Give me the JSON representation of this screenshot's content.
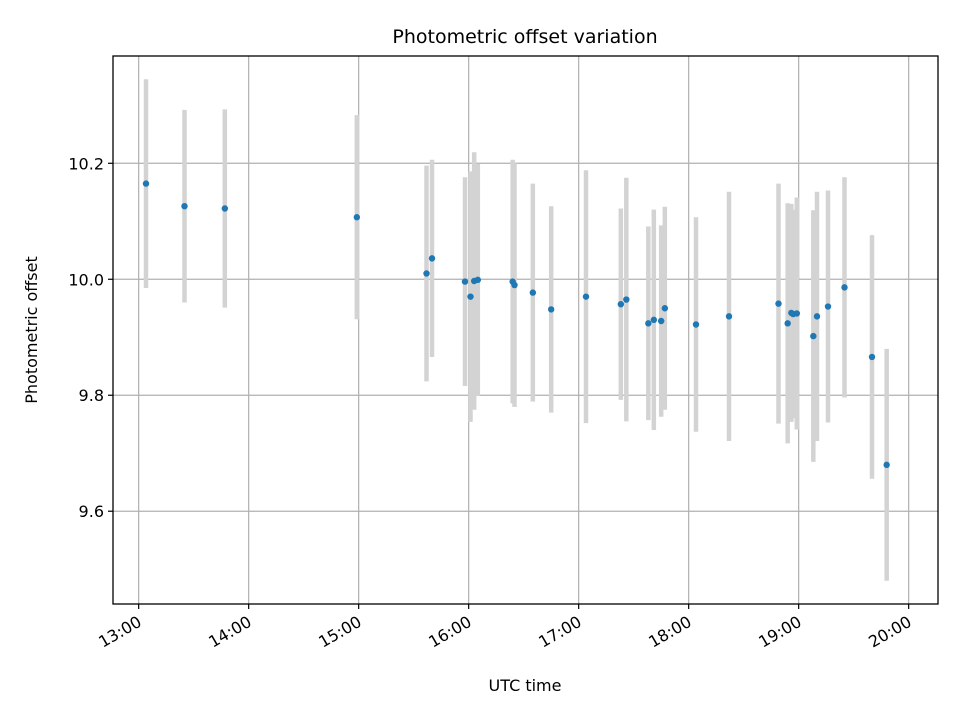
{
  "chart_data": {
    "type": "scatter",
    "title": "Photometric offset variation",
    "xlabel": "UTC time",
    "ylabel": "Photometric offset",
    "grid": true,
    "x_ticks": [
      "13:00",
      "14:00",
      "15:00",
      "16:00",
      "17:00",
      "18:00",
      "19:00",
      "20:00"
    ],
    "y_ticks": [
      9.6,
      9.8,
      10.0,
      10.2
    ],
    "xlim": [
      "12:46",
      "20:16"
    ],
    "ylim": [
      9.44,
      10.385
    ],
    "colors": {
      "point": "#1f77b4",
      "errorbar": "#d3d3d3",
      "grid": "#b0b0b0",
      "axis": "#000000"
    },
    "series": [
      {
        "points": [
          {
            "x": "13:04",
            "y": 10.165,
            "err": 0.18
          },
          {
            "x": "13:25",
            "y": 10.126,
            "err": 0.166
          },
          {
            "x": "13:47",
            "y": 10.122,
            "err": 0.171
          },
          {
            "x": "14:59",
            "y": 10.107,
            "err": 0.176
          },
          {
            "x": "15:37",
            "y": 10.01,
            "err": 0.186
          },
          {
            "x": "15:40",
            "y": 10.036,
            "err": 0.17
          },
          {
            "x": "15:58",
            "y": 9.996,
            "err": 0.18
          },
          {
            "x": "16:01",
            "y": 9.97,
            "err": 0.216
          },
          {
            "x": "16:03",
            "y": 9.997,
            "err": 0.222
          },
          {
            "x": "16:05",
            "y": 9.999,
            "err": 0.2
          },
          {
            "x": "16:24",
            "y": 9.996,
            "err": 0.21
          },
          {
            "x": "16:25",
            "y": 9.99,
            "err": 0.21
          },
          {
            "x": "16:35",
            "y": 9.977,
            "err": 0.188
          },
          {
            "x": "16:45",
            "y": 9.948,
            "err": 0.178
          },
          {
            "x": "17:04",
            "y": 9.97,
            "err": 0.218
          },
          {
            "x": "17:23",
            "y": 9.957,
            "err": 0.165
          },
          {
            "x": "17:26",
            "y": 9.965,
            "err": 0.21
          },
          {
            "x": "17:38",
            "y": 9.924,
            "err": 0.167
          },
          {
            "x": "17:41",
            "y": 9.93,
            "err": 0.19
          },
          {
            "x": "17:45",
            "y": 9.928,
            "err": 0.165
          },
          {
            "x": "17:47",
            "y": 9.95,
            "err": 0.175
          },
          {
            "x": "18:04",
            "y": 9.922,
            "err": 0.185
          },
          {
            "x": "18:22",
            "y": 9.936,
            "err": 0.215
          },
          {
            "x": "18:49",
            "y": 9.958,
            "err": 0.207
          },
          {
            "x": "18:54",
            "y": 9.924,
            "err": 0.207
          },
          {
            "x": "18:56",
            "y": 9.942,
            "err": 0.188
          },
          {
            "x": "18:57",
            "y": 9.94,
            "err": 0.18
          },
          {
            "x": "18:59",
            "y": 9.941,
            "err": 0.2
          },
          {
            "x": "19:08",
            "y": 9.902,
            "err": 0.217
          },
          {
            "x": "19:10",
            "y": 9.936,
            "err": 0.215
          },
          {
            "x": "19:16",
            "y": 9.953,
            "err": 0.2
          },
          {
            "x": "19:25",
            "y": 9.986,
            "err": 0.19
          },
          {
            "x": "19:40",
            "y": 9.866,
            "err": 0.21
          },
          {
            "x": "19:48",
            "y": 9.68,
            "err": 0.2
          }
        ]
      }
    ]
  }
}
